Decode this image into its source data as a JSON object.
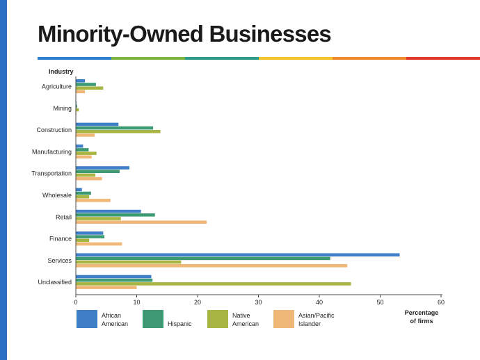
{
  "page": {
    "title": "Minority-Owned Businesses",
    "accent_left": "#2a6fc2",
    "stripe_colors": [
      "#2f7fd0",
      "#7bb540",
      "#2f9b8a",
      "#f2c230",
      "#ef8a2a",
      "#e03a2f"
    ]
  },
  "chart_data": {
    "type": "bar",
    "orientation": "horizontal",
    "title": "",
    "ylabel": "Industry",
    "xlabel": "Percentage of firms",
    "xlim": [
      0,
      60
    ],
    "xticks": [
      0,
      10,
      20,
      30,
      40,
      50,
      60
    ],
    "grid": false,
    "legend_position": "bottom",
    "categories": [
      "Agriculture",
      "Mining",
      "Construction",
      "Manufacturing",
      "Transportation",
      "Wholesale",
      "Retail",
      "Finance",
      "Services",
      "Unclassified"
    ],
    "series": [
      {
        "name": "African American",
        "color": "#3f7fc8",
        "values": [
          1.5,
          0.1,
          7.0,
          1.2,
          8.8,
          1.0,
          10.7,
          4.5,
          53.2,
          12.4
        ]
      },
      {
        "name": "Hispanic",
        "color": "#3d9a72",
        "values": [
          3.3,
          0.2,
          12.7,
          2.1,
          7.2,
          2.5,
          13.0,
          4.7,
          41.8,
          12.6
        ]
      },
      {
        "name": "Native American",
        "color": "#a8b542",
        "values": [
          4.5,
          0.5,
          13.9,
          3.4,
          3.2,
          2.2,
          7.4,
          2.2,
          17.3,
          45.2
        ]
      },
      {
        "name": "Asian/Pacific Islander",
        "color": "#f0b878",
        "values": [
          1.5,
          0.1,
          3.1,
          2.6,
          4.3,
          5.7,
          21.5,
          7.6,
          44.6,
          10.0
        ]
      }
    ],
    "legend": [
      {
        "label_line1": "African",
        "label_line2": "American"
      },
      {
        "label_line1": "Hispanic",
        "label_line2": ""
      },
      {
        "label_line1": "Native",
        "label_line2": "American"
      },
      {
        "label_line1": "Asian/Pacific",
        "label_line2": "Islander"
      }
    ],
    "xlabel_line1": "Percentage",
    "xlabel_line2": "of firms"
  }
}
